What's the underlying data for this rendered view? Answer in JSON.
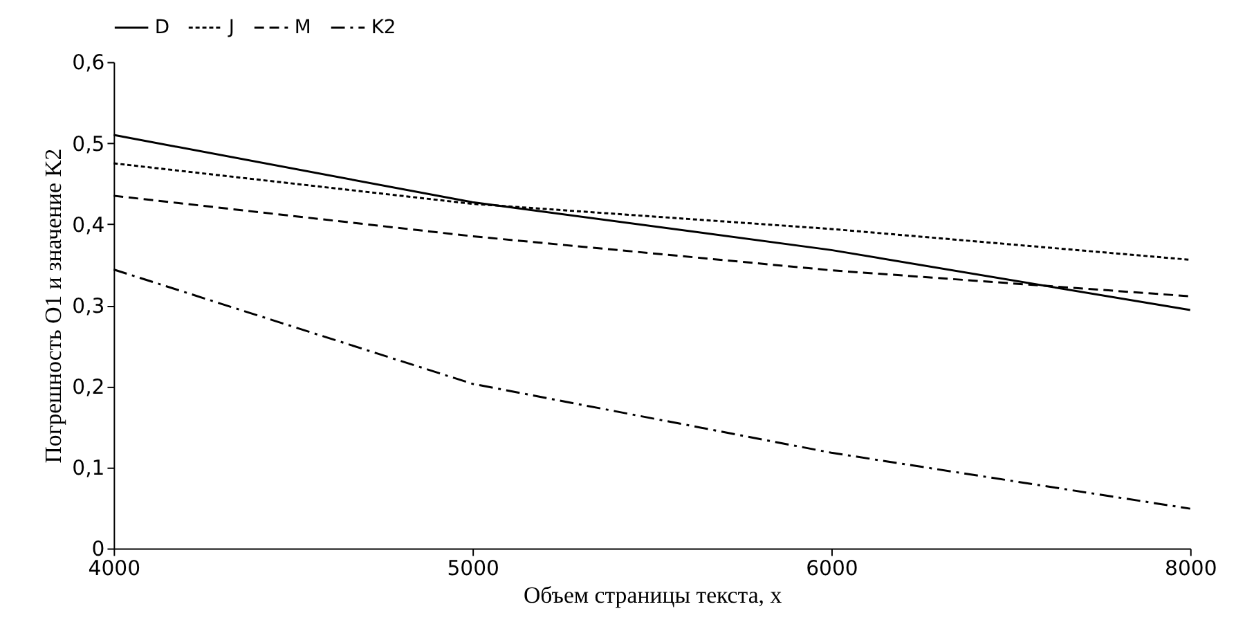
{
  "chart_data": {
    "type": "line",
    "xlabel": "Объем страницы текста, x",
    "ylabel": "Погрешность O1 и  значение K2",
    "categories": [
      "4000",
      "5000",
      "6000",
      "8000"
    ],
    "series": [
      {
        "name": "D",
        "color": "#000000",
        "line_style": "solid",
        "values": [
          0.51,
          0.427,
          0.368,
          0.294
        ]
      },
      {
        "name": "J",
        "color": "#000000",
        "line_style": "dotted",
        "values": [
          0.475,
          0.425,
          0.394,
          0.356
        ]
      },
      {
        "name": "M",
        "color": "#000000",
        "line_style": "dashed",
        "values": [
          0.435,
          0.385,
          0.343,
          0.311
        ]
      },
      {
        "name": "K2",
        "color": "#000000",
        "line_style": "dashdot",
        "values": [
          0.344,
          0.203,
          0.118,
          0.049
        ]
      }
    ],
    "ylim": [
      0,
      0.6
    ],
    "yticks": [
      0,
      {
        "value": 0.1,
        "label": "0,1"
      },
      {
        "value": 0.2,
        "label": "0,2"
      },
      {
        "value": 0.3,
        "label": "0,3"
      },
      {
        "value": 0.4,
        "label": "0,4"
      },
      {
        "value": 0.5,
        "label": "0,5"
      },
      {
        "value": 0.6,
        "label": "0,6"
      }
    ],
    "grid": false,
    "legend": "top",
    "marker": "none"
  }
}
